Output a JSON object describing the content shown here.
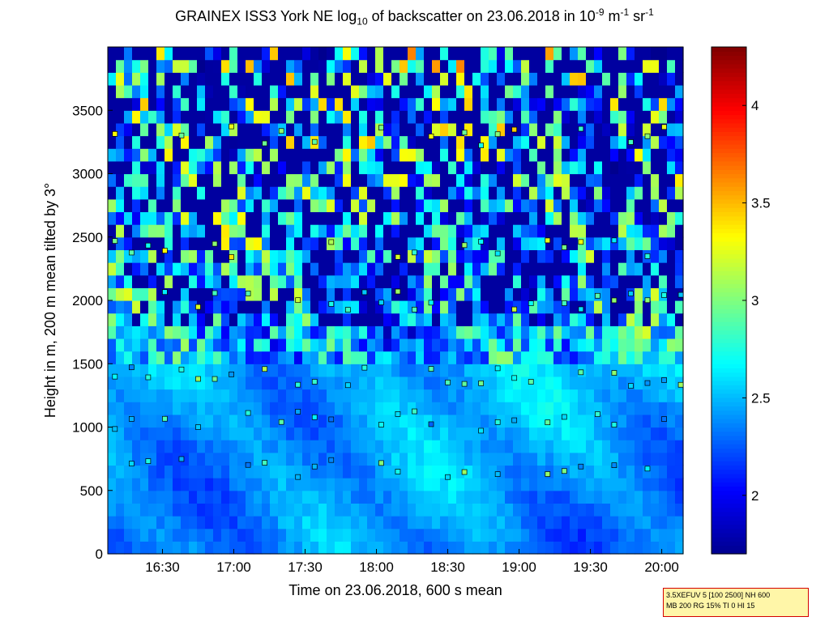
{
  "chart_data": {
    "type": "heatmap",
    "title_main": "GRAINEX ISS3 York NE log",
    "title_sub": "10",
    "title_mid": " of backscatter on 23.06.2018 in 10",
    "title_exp1": "-9",
    "title_unit1": " m",
    "title_exp2": "-1",
    "title_unit2": " sr",
    "title_exp3": "-1",
    "xlabel": "Time on 23.06.2018, 600 s mean",
    "ylabel": "Height in m, 200 m mean tilted by 3°",
    "x_range": [
      "16:07",
      "20:09"
    ],
    "ylim": [
      0,
      4000
    ],
    "x_ticks": [
      "16:30",
      "17:00",
      "17:30",
      "18:00",
      "18:30",
      "19:00",
      "19:30",
      "20:00"
    ],
    "y_ticks": [
      "0",
      "500",
      "1000",
      "1500",
      "2000",
      "2500",
      "3000",
      "3500"
    ],
    "colorbar": {
      "range": [
        1.7,
        4.3
      ],
      "ticks": [
        "2",
        "2.5",
        "3",
        "3.5",
        "4"
      ],
      "colormap": "jet",
      "colors": [
        "#00008f",
        "#0000ff",
        "#007fff",
        "#00ffff",
        "#7fff7f",
        "#ffff00",
        "#ff7f00",
        "#ff0000",
        "#7f0000"
      ]
    },
    "layers": [
      {
        "height": 680,
        "level": 2.7
      },
      {
        "height": 1050,
        "level": 2.65
      },
      {
        "height": 1400,
        "level": 2.75
      },
      {
        "height": 2000,
        "level": 2.9
      },
      {
        "height": 2400,
        "level": 3.0
      },
      {
        "height": 3300,
        "level": 3.1
      }
    ]
  },
  "info_box": {
    "line1": "3.5XEFUV 5 [100 2500] NH 600",
    "line2": "MB 200 RG 15% TI 0 HI 15"
  }
}
